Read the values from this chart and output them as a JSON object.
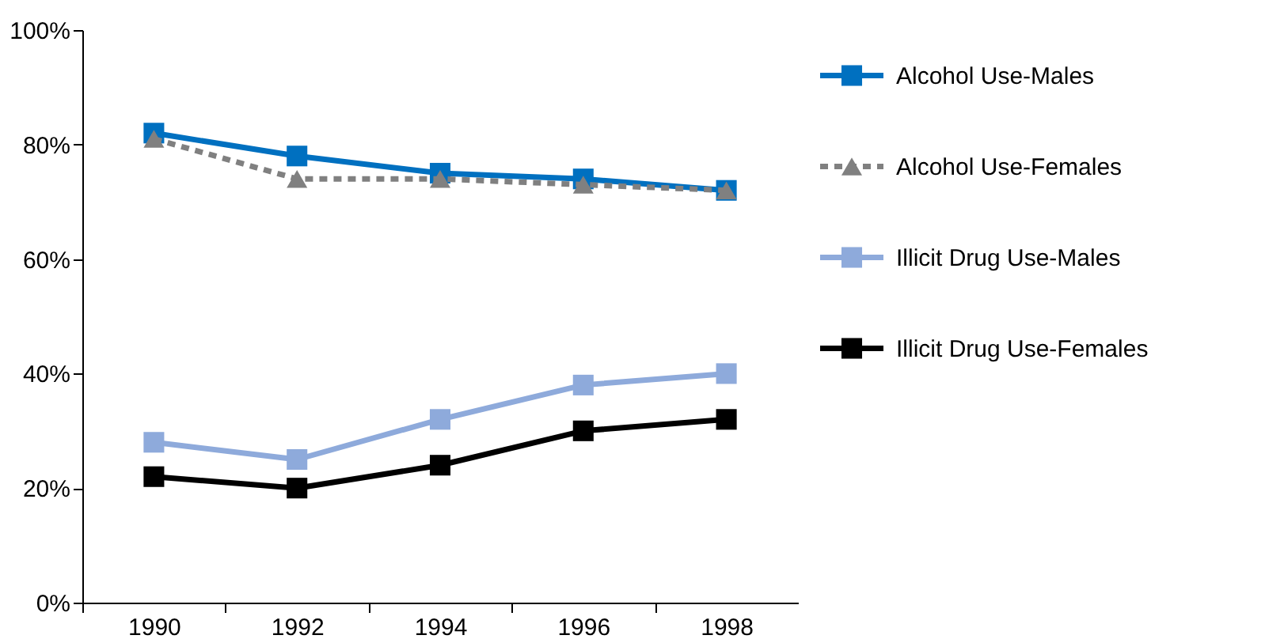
{
  "chart_data": {
    "type": "line",
    "categories": [
      "1990",
      "1992",
      "1994",
      "1996",
      "1998"
    ],
    "ylim": [
      0,
      100
    ],
    "yticks": [
      {
        "value": 0,
        "label": "0%"
      },
      {
        "value": 20,
        "label": "20%"
      },
      {
        "value": 40,
        "label": "40%"
      },
      {
        "value": 60,
        "label": "60%"
      },
      {
        "value": 80,
        "label": "80%"
      },
      {
        "value": 100,
        "label": "100%"
      }
    ],
    "grid": false,
    "legend": "right",
    "series": [
      {
        "name": "Alcohol Use-Males",
        "color": "#0070c0",
        "marker": "square",
        "line_style": "solid",
        "values": [
          82,
          78,
          75,
          74,
          72
        ]
      },
      {
        "name": "Alcohol Use-Females",
        "color": "#808080",
        "marker": "triangle",
        "line_style": "dashed",
        "values": [
          81,
          74,
          74,
          73,
          72
        ]
      },
      {
        "name": "Illicit Drug Use-Males",
        "color": "#8eaadb",
        "marker": "square",
        "line_style": "solid",
        "values": [
          28,
          25,
          32,
          38,
          40
        ]
      },
      {
        "name": "Illicit Drug Use-Females",
        "color": "#000000",
        "marker": "square",
        "line_style": "solid",
        "values": [
          22,
          20,
          24,
          30,
          32
        ]
      }
    ]
  }
}
